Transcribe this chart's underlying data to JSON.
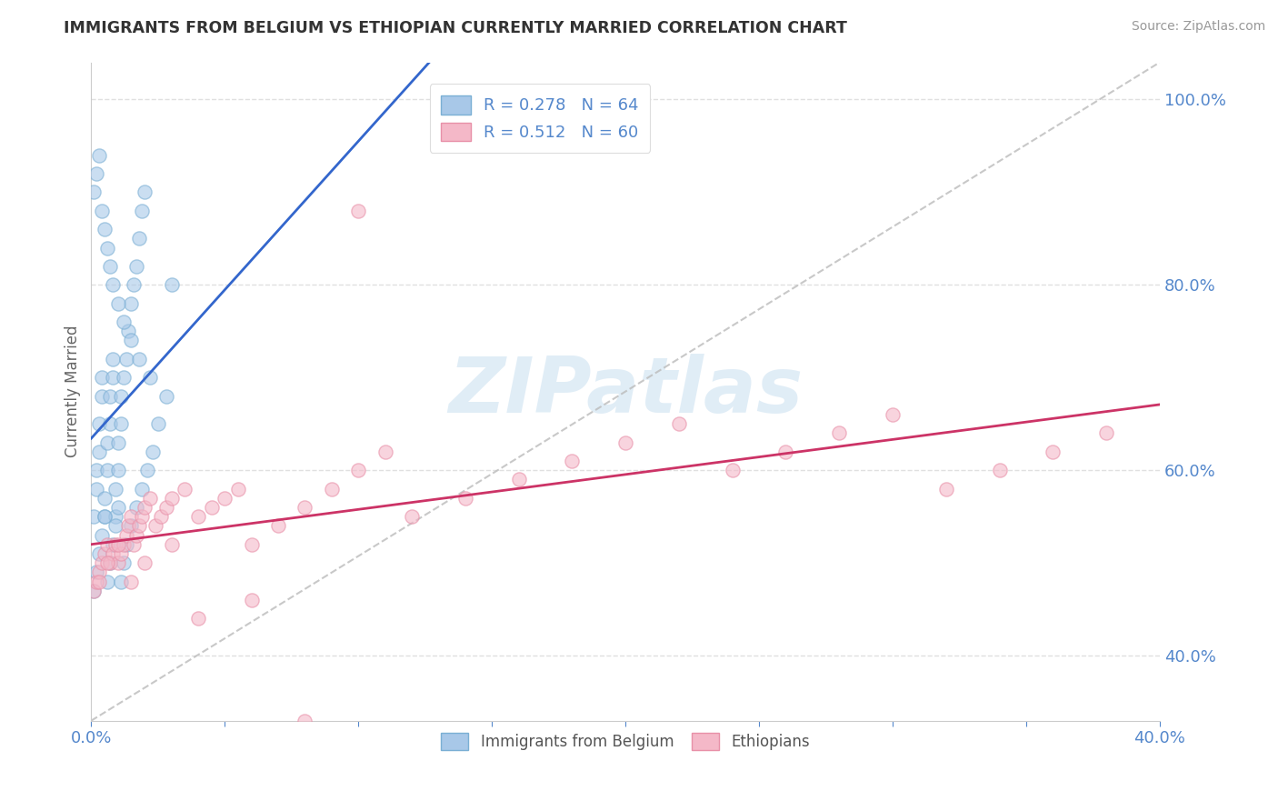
{
  "title": "IMMIGRANTS FROM BELGIUM VS ETHIOPIAN CURRENTLY MARRIED CORRELATION CHART",
  "source": "Source: ZipAtlas.com",
  "ylabel": "Currently Married",
  "xmin": 0.0,
  "xmax": 0.4,
  "ymin": 0.33,
  "ymax": 1.04,
  "yticks": [
    0.4,
    0.6,
    0.8,
    1.0
  ],
  "ytick_labels": [
    "40.0%",
    "60.0%",
    "80.0%",
    "100.0%"
  ],
  "legend_label1": "Immigrants from Belgium",
  "legend_label2": "Ethiopians",
  "blue_scatter_color": "#a8c8e8",
  "blue_edge_color": "#7aafd4",
  "pink_scatter_color": "#f4b8c8",
  "pink_edge_color": "#e890a8",
  "blue_line_color": "#3366cc",
  "pink_line_color": "#cc3366",
  "dash_line_color": "#bbbbbb",
  "watermark_color": "#c8dff0",
  "watermark_text": "ZIPatlas",
  "grid_color": "#e0e0e0",
  "tick_color": "#5588cc",
  "belgium_x": [
    0.001,
    0.002,
    0.002,
    0.003,
    0.003,
    0.004,
    0.004,
    0.005,
    0.005,
    0.006,
    0.006,
    0.007,
    0.007,
    0.008,
    0.008,
    0.009,
    0.009,
    0.01,
    0.01,
    0.011,
    0.011,
    0.012,
    0.013,
    0.014,
    0.015,
    0.016,
    0.017,
    0.018,
    0.019,
    0.02,
    0.001,
    0.002,
    0.003,
    0.004,
    0.005,
    0.006,
    0.007,
    0.008,
    0.009,
    0.01,
    0.011,
    0.012,
    0.013,
    0.015,
    0.017,
    0.019,
    0.021,
    0.023,
    0.025,
    0.028,
    0.001,
    0.002,
    0.003,
    0.004,
    0.005,
    0.006,
    0.007,
    0.008,
    0.01,
    0.012,
    0.015,
    0.018,
    0.022,
    0.03
  ],
  "belgium_y": [
    0.55,
    0.58,
    0.6,
    0.62,
    0.65,
    0.68,
    0.7,
    0.55,
    0.57,
    0.6,
    0.63,
    0.65,
    0.68,
    0.7,
    0.72,
    0.55,
    0.58,
    0.6,
    0.63,
    0.65,
    0.68,
    0.7,
    0.72,
    0.75,
    0.78,
    0.8,
    0.82,
    0.85,
    0.88,
    0.9,
    0.47,
    0.49,
    0.51,
    0.53,
    0.55,
    0.48,
    0.5,
    0.52,
    0.54,
    0.56,
    0.48,
    0.5,
    0.52,
    0.54,
    0.56,
    0.58,
    0.6,
    0.62,
    0.65,
    0.68,
    0.9,
    0.92,
    0.94,
    0.88,
    0.86,
    0.84,
    0.82,
    0.8,
    0.78,
    0.76,
    0.74,
    0.72,
    0.7,
    0.8
  ],
  "ethiopia_x": [
    0.001,
    0.002,
    0.003,
    0.004,
    0.005,
    0.006,
    0.007,
    0.008,
    0.009,
    0.01,
    0.011,
    0.012,
    0.013,
    0.014,
    0.015,
    0.016,
    0.017,
    0.018,
    0.019,
    0.02,
    0.022,
    0.024,
    0.026,
    0.028,
    0.03,
    0.035,
    0.04,
    0.045,
    0.05,
    0.055,
    0.06,
    0.07,
    0.08,
    0.09,
    0.1,
    0.11,
    0.12,
    0.14,
    0.16,
    0.18,
    0.2,
    0.22,
    0.24,
    0.26,
    0.28,
    0.3,
    0.32,
    0.34,
    0.36,
    0.38,
    0.003,
    0.006,
    0.01,
    0.015,
    0.02,
    0.03,
    0.04,
    0.06,
    0.08,
    0.1
  ],
  "ethiopia_y": [
    0.47,
    0.48,
    0.49,
    0.5,
    0.51,
    0.52,
    0.5,
    0.51,
    0.52,
    0.5,
    0.51,
    0.52,
    0.53,
    0.54,
    0.55,
    0.52,
    0.53,
    0.54,
    0.55,
    0.56,
    0.57,
    0.54,
    0.55,
    0.56,
    0.57,
    0.58,
    0.55,
    0.56,
    0.57,
    0.58,
    0.52,
    0.54,
    0.56,
    0.58,
    0.6,
    0.62,
    0.55,
    0.57,
    0.59,
    0.61,
    0.63,
    0.65,
    0.6,
    0.62,
    0.64,
    0.66,
    0.58,
    0.6,
    0.62,
    0.64,
    0.48,
    0.5,
    0.52,
    0.48,
    0.5,
    0.52,
    0.44,
    0.46,
    0.33,
    0.88
  ]
}
